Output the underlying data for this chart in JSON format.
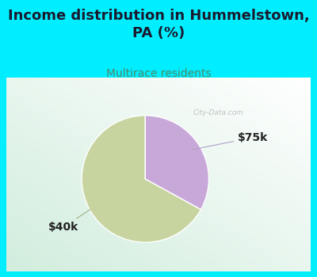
{
  "title": "Income distribution in Hummelstown,\nPA (%)",
  "subtitle": "Multirace residents",
  "title_color": "#1a1a2e",
  "subtitle_color": "#4a8a6a",
  "bg_color": "#00eeff",
  "chart_panel_bg": "#ffffff",
  "slices": [
    {
      "label": "$40k",
      "value": 67,
      "color": "#c8d4a0"
    },
    {
      "label": "$75k",
      "value": 33,
      "color": "#c8a8d8"
    }
  ],
  "start_angle": 90,
  "title_fontsize": 13,
  "subtitle_fontsize": 10,
  "label_fontsize": 10,
  "watermark": "City-Data.com"
}
